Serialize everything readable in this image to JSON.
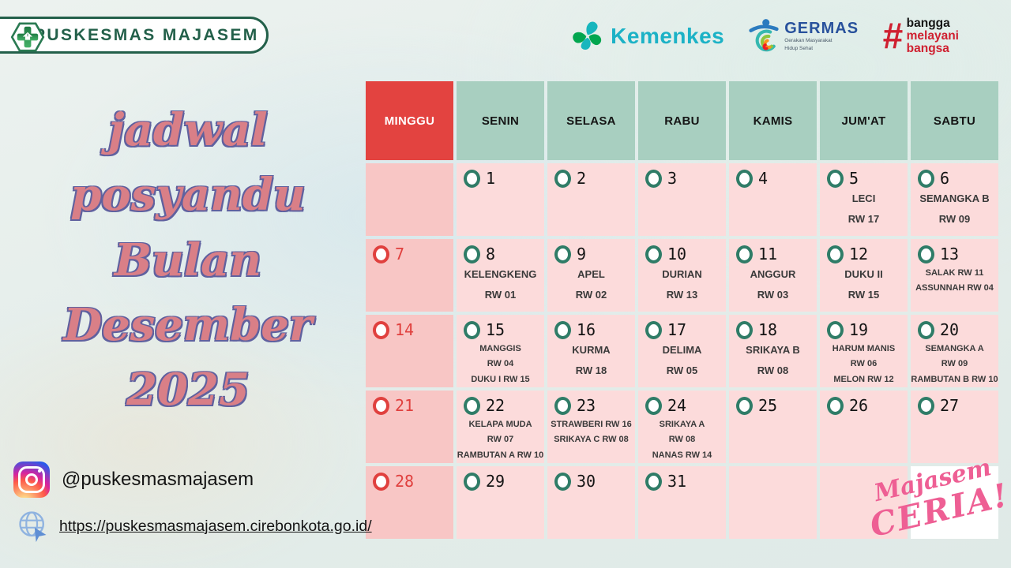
{
  "header": {
    "clinic_name": "PUSKESMAS MAJASEM",
    "kemenkes_label": "Kemenkes",
    "germas_label": "GERMAS",
    "germas_subtitle_line1": "Gerakan Masyarakat",
    "germas_subtitle_line2": "Hidup Sehat",
    "bangga_hash": "#",
    "bangga_line1": "bangga",
    "bangga_line2": "melayani",
    "bangga_line3": "bangsa"
  },
  "title": {
    "lines": [
      "jadwal",
      "posyandu",
      "Bulan",
      "Desember",
      "2025"
    ]
  },
  "calendar": {
    "day_headers": [
      "MINGGU",
      "SENIN",
      "SELASA",
      "RABU",
      "KAMIS",
      "JUM'AT",
      "SABTU"
    ],
    "weeks": [
      [
        {
          "empty": true
        },
        {
          "day": "1"
        },
        {
          "day": "2"
        },
        {
          "day": "3"
        },
        {
          "day": "4"
        },
        {
          "day": "5",
          "lines": [
            "LECI",
            "RW 17"
          ]
        },
        {
          "day": "6",
          "lines": [
            "SEMANGKA B",
            "RW 09"
          ]
        }
      ],
      [
        {
          "day": "7"
        },
        {
          "day": "8",
          "lines": [
            "KELENGKENG",
            "RW 01"
          ]
        },
        {
          "day": "9",
          "lines": [
            "APEL",
            "RW 02"
          ]
        },
        {
          "day": "10",
          "lines": [
            "DURIAN",
            "RW 13"
          ]
        },
        {
          "day": "11",
          "lines": [
            "ANGGUR",
            "RW 03"
          ]
        },
        {
          "day": "12",
          "lines": [
            "DUKU II",
            "RW 15"
          ]
        },
        {
          "day": "13",
          "lines": [
            "SALAK RW 11",
            "ASSUNNAH RW 04"
          ],
          "small": true
        }
      ],
      [
        {
          "day": "14"
        },
        {
          "day": "15",
          "lines": [
            "MANGGIS",
            "RW 04",
            "DUKU I RW 15"
          ],
          "small": true
        },
        {
          "day": "16",
          "lines": [
            "KURMA",
            "RW 18"
          ]
        },
        {
          "day": "17",
          "lines": [
            "DELIMA",
            "RW 05"
          ]
        },
        {
          "day": "18",
          "lines": [
            "SRIKAYA B",
            "RW 08"
          ]
        },
        {
          "day": "19",
          "lines": [
            "HARUM MANIS",
            "RW 06",
            "MELON RW 12"
          ],
          "small": true
        },
        {
          "day": "20",
          "lines": [
            "SEMANGKA A",
            "RW 09",
            "RAMBUTAN B RW 10"
          ],
          "small": true
        }
      ],
      [
        {
          "day": "21"
        },
        {
          "day": "22",
          "lines": [
            "KELAPA MUDA",
            "RW 07",
            "RAMBUTAN A RW 10"
          ],
          "small": true
        },
        {
          "day": "23",
          "lines": [
            "STRAWBERI RW 16",
            "SRIKAYA C RW 08"
          ],
          "small": true
        },
        {
          "day": "24",
          "lines": [
            "SRIKAYA A",
            "RW 08",
            "NANAS RW 14"
          ],
          "small": true
        },
        {
          "day": "25"
        },
        {
          "day": "26"
        },
        {
          "day": "27"
        }
      ],
      [
        {
          "day": "28"
        },
        {
          "day": "29"
        },
        {
          "day": "30"
        },
        {
          "day": "31"
        },
        {
          "empty": true
        },
        {
          "empty": true
        },
        {
          "empty": true,
          "white": true
        }
      ]
    ]
  },
  "watermark": {
    "line1": "Majasem",
    "line2": "CERIA!"
  },
  "footer": {
    "instagram_handle": "@puskesmasmajasem",
    "website_url": "https://puskesmasmajasem.cirebonkota.go.id/"
  },
  "colors": {
    "sunday_red": "#e34340",
    "header_green": "#a8cfc0",
    "cell_pink": "#fcdbdb",
    "sunday_pink": "#f8c6c5",
    "circle_green": "#2f7c67",
    "title_pink": "#d97f87",
    "title_outline": "#60619f",
    "watermark_pink": "#ee5f94"
  }
}
